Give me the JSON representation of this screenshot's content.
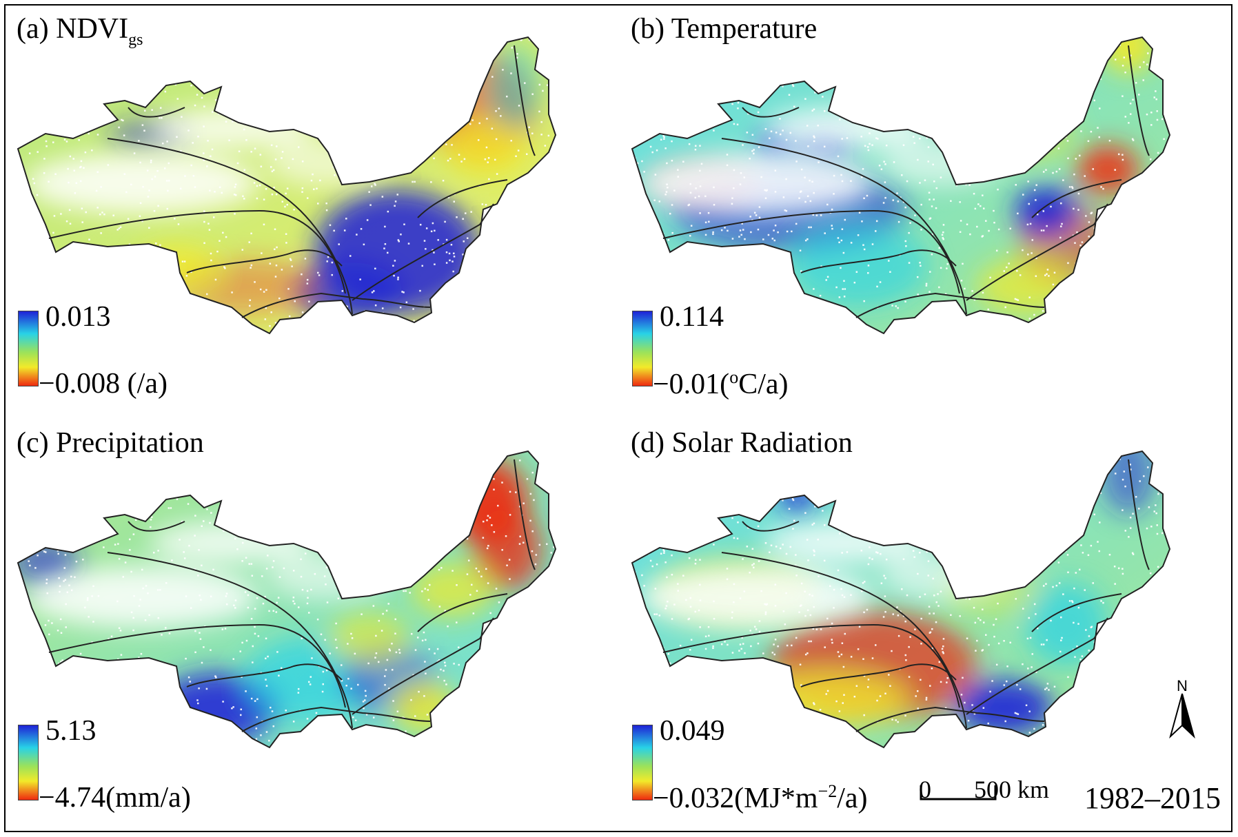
{
  "panels": [
    {
      "label": "(a) NDVI",
      "label_sub": "gs",
      "legend_max": "0.013",
      "legend_min": "−0.008 (/a)",
      "theme": "mixed-ndvi"
    },
    {
      "label": "(b) Temperature",
      "legend_max": "0.114",
      "legend_min_prefix": "−0.01(",
      "legend_min_sup": "o",
      "legend_min_suffix": "C/a)",
      "theme": "temperature"
    },
    {
      "label": "(c) Precipitation",
      "legend_max": "5.13",
      "legend_min": "−4.74(mm/a)",
      "theme": "precipitation"
    },
    {
      "label": "(d) Solar Radiation",
      "legend_max": "0.049",
      "legend_min_prefix": "−0.032(MJ*m",
      "legend_min_sup": "−2",
      "legend_min_suffix": "/a)",
      "theme": "solar"
    }
  ],
  "scale_bar": {
    "start": "0",
    "end": "500 km"
  },
  "period": "1982–2015",
  "north_label": "N",
  "colors": {
    "high": "#1e22d6",
    "mid_high": "#28d2e6",
    "mid": "#9ce25a",
    "mid_low": "#f2ea2a",
    "low": "#ee2a10",
    "outline": "#222222"
  }
}
